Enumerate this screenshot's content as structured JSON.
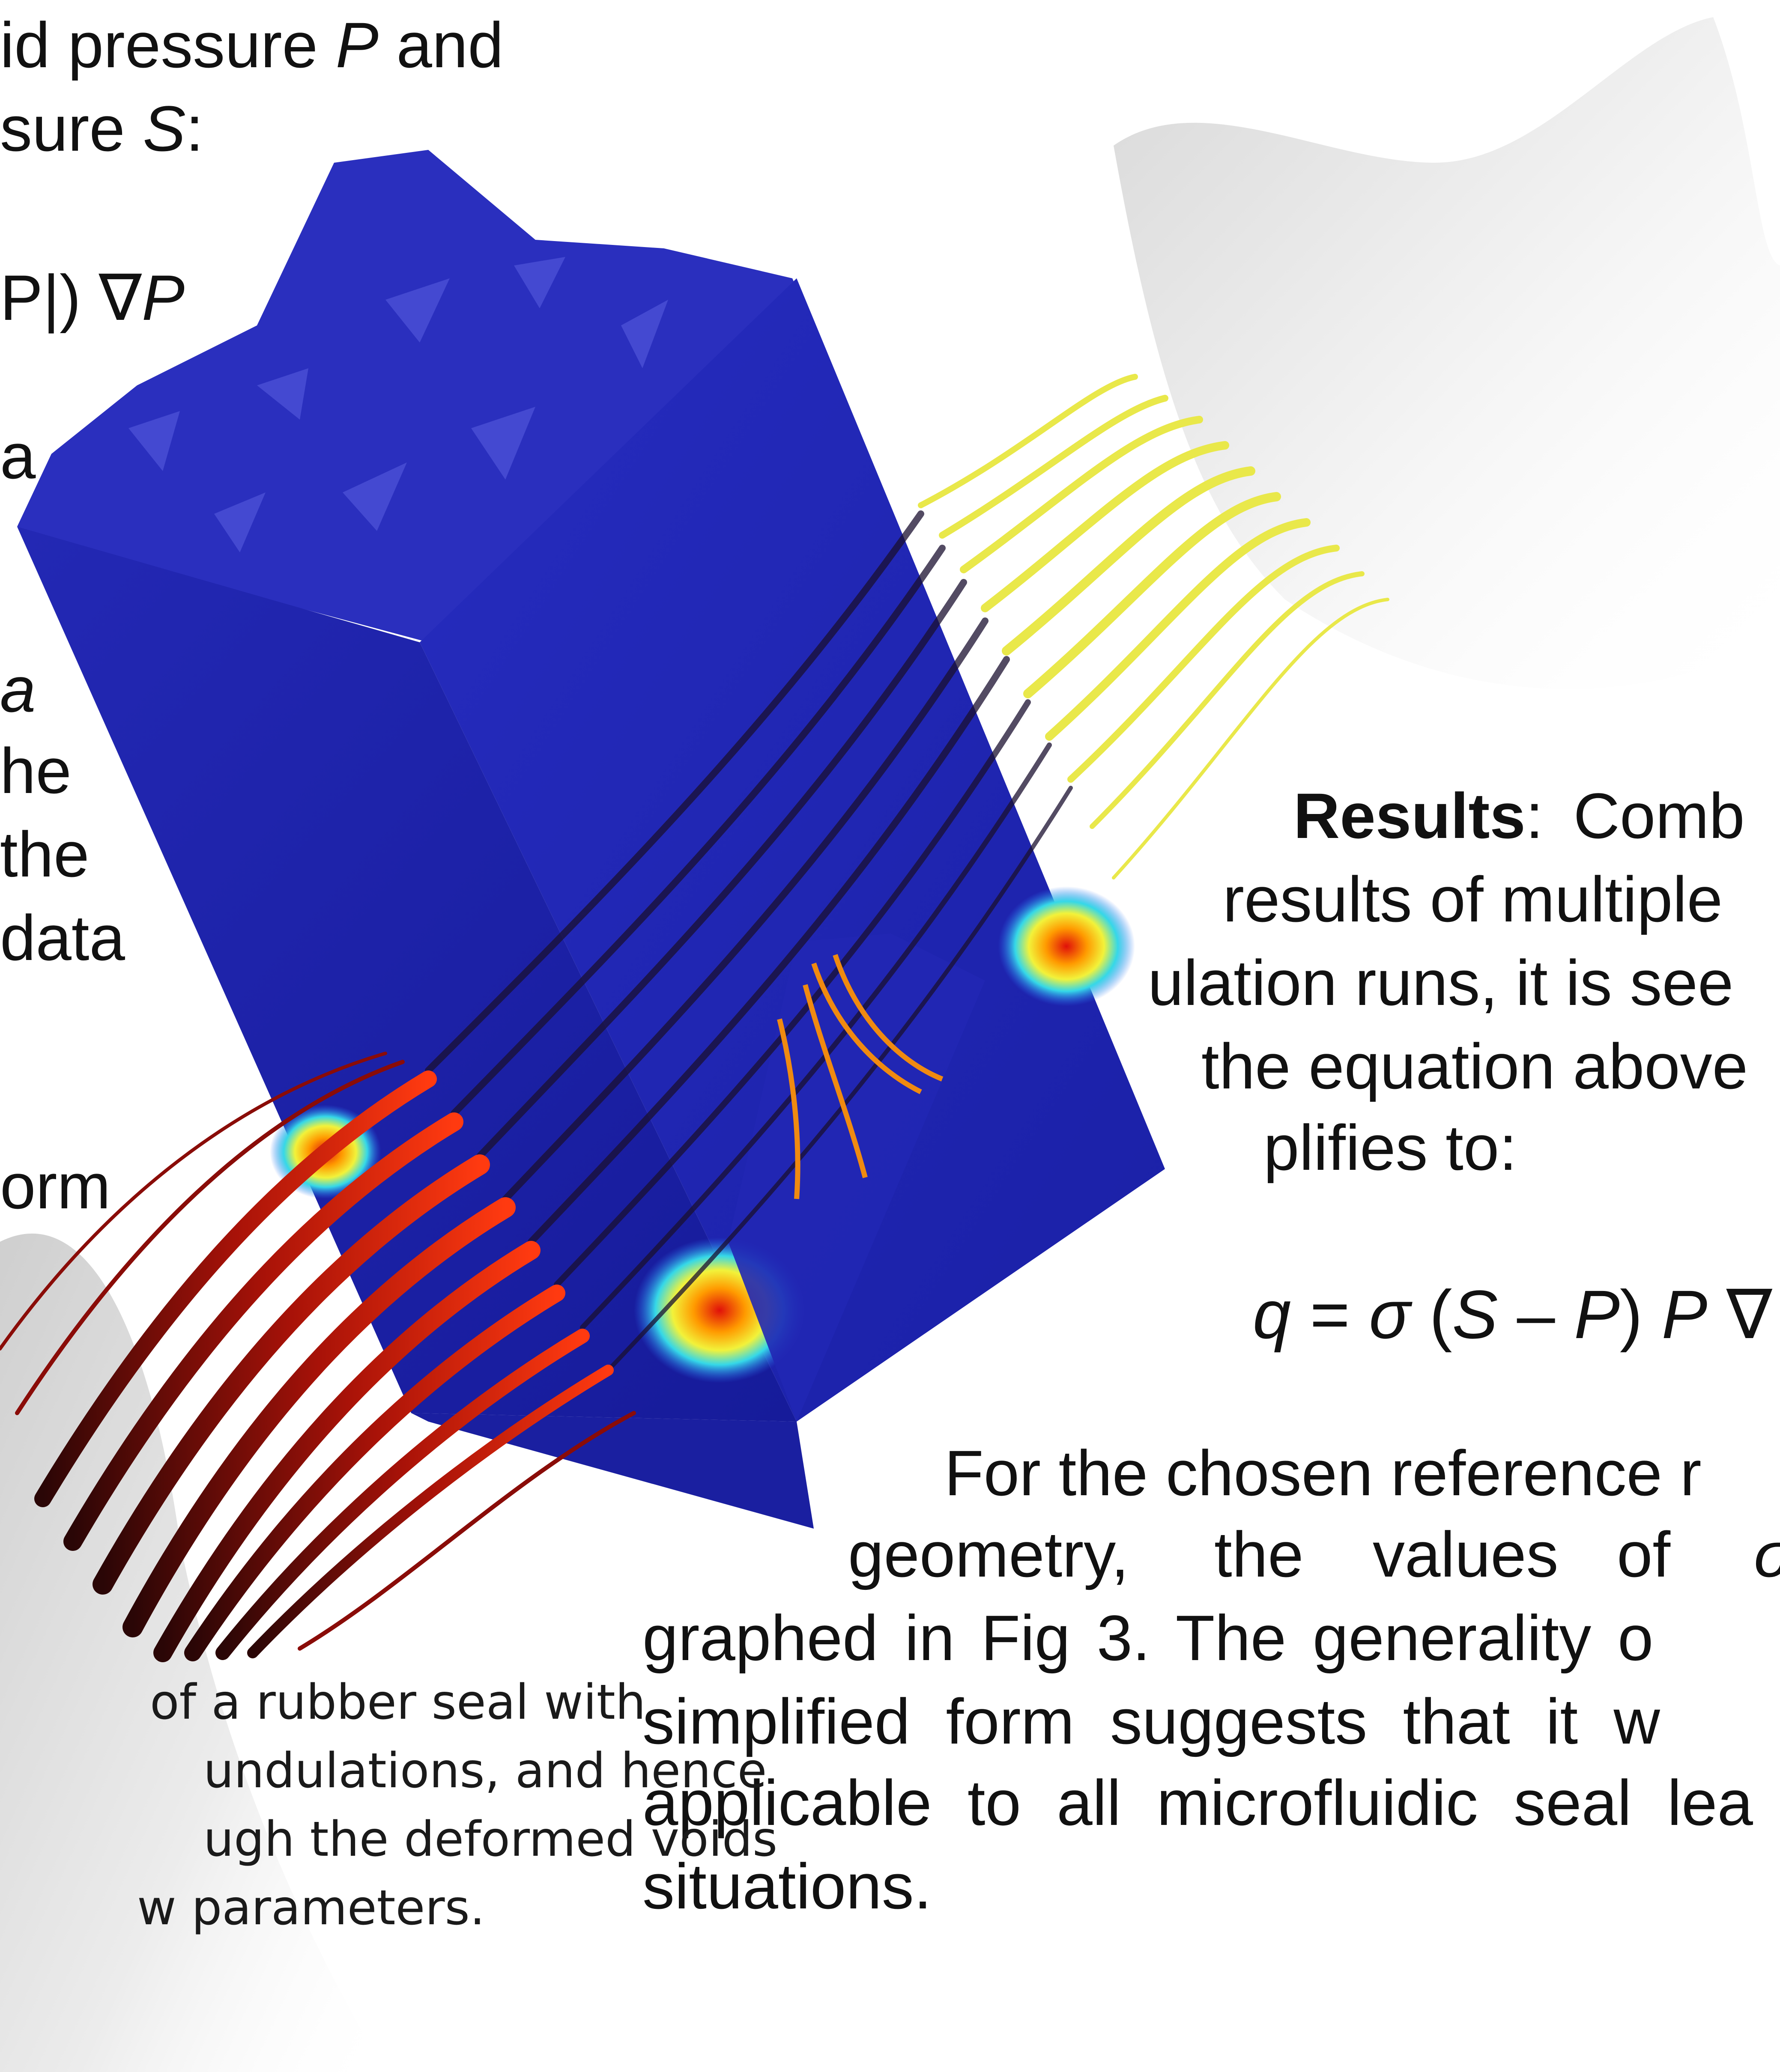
{
  "left_column": {
    "line1": {
      "pre": "id pressure ",
      "var": "P",
      "post": " and"
    },
    "line2": {
      "pre": "sure ",
      "var": "S",
      "post": ":"
    },
    "equation_fragment": {
      "pre": "P|)  ∇",
      "var": "P"
    },
    "line_a": "a",
    "line_a_italic": "a",
    "line_the1": "he",
    "line_the2": "the",
    "line_data": "data",
    "line_form": "orm"
  },
  "results": {
    "label": "Results",
    "colon": ":",
    "line1_rest": "Comb",
    "line2": "results of multiple",
    "line3": "ulation runs, it is see",
    "line4": "the equation above",
    "line5": "plifies to:"
  },
  "simplified_equation": {
    "q": "q",
    "eq": " = ",
    "sigma": "σ",
    "open": " (",
    "S": "S",
    "minus": " – ",
    "P1": "P",
    "close": ")  ",
    "P2": "P",
    "nabla": " ∇"
  },
  "closing_paragraph": {
    "line1": "For the chosen reference r",
    "line2_a": "geometry,",
    "line2_b": "the",
    "line2_c": "values",
    "line2_d": "of",
    "line2_e": "σ",
    "line3": "graphed in Fig 3. The generality o",
    "line4": "simplified  form  suggests  that  it  w",
    "line5": "applicable  to  all  microfluidic  seal  lea",
    "line6": "situations."
  },
  "caption": {
    "line1": "of a rubber seal with",
    "line2": "undulations, and hence",
    "line3": "ugh the deformed voids",
    "line4": "w parameters."
  },
  "colors": {
    "block_blue": "#1c22a8",
    "block_top": "#2a30c0",
    "hot_red": "#e21a0a",
    "streamline_dark": "#3a0a0a",
    "streamline_yellow": "#e8e64a",
    "surface_gray": "#e6e6e6"
  }
}
